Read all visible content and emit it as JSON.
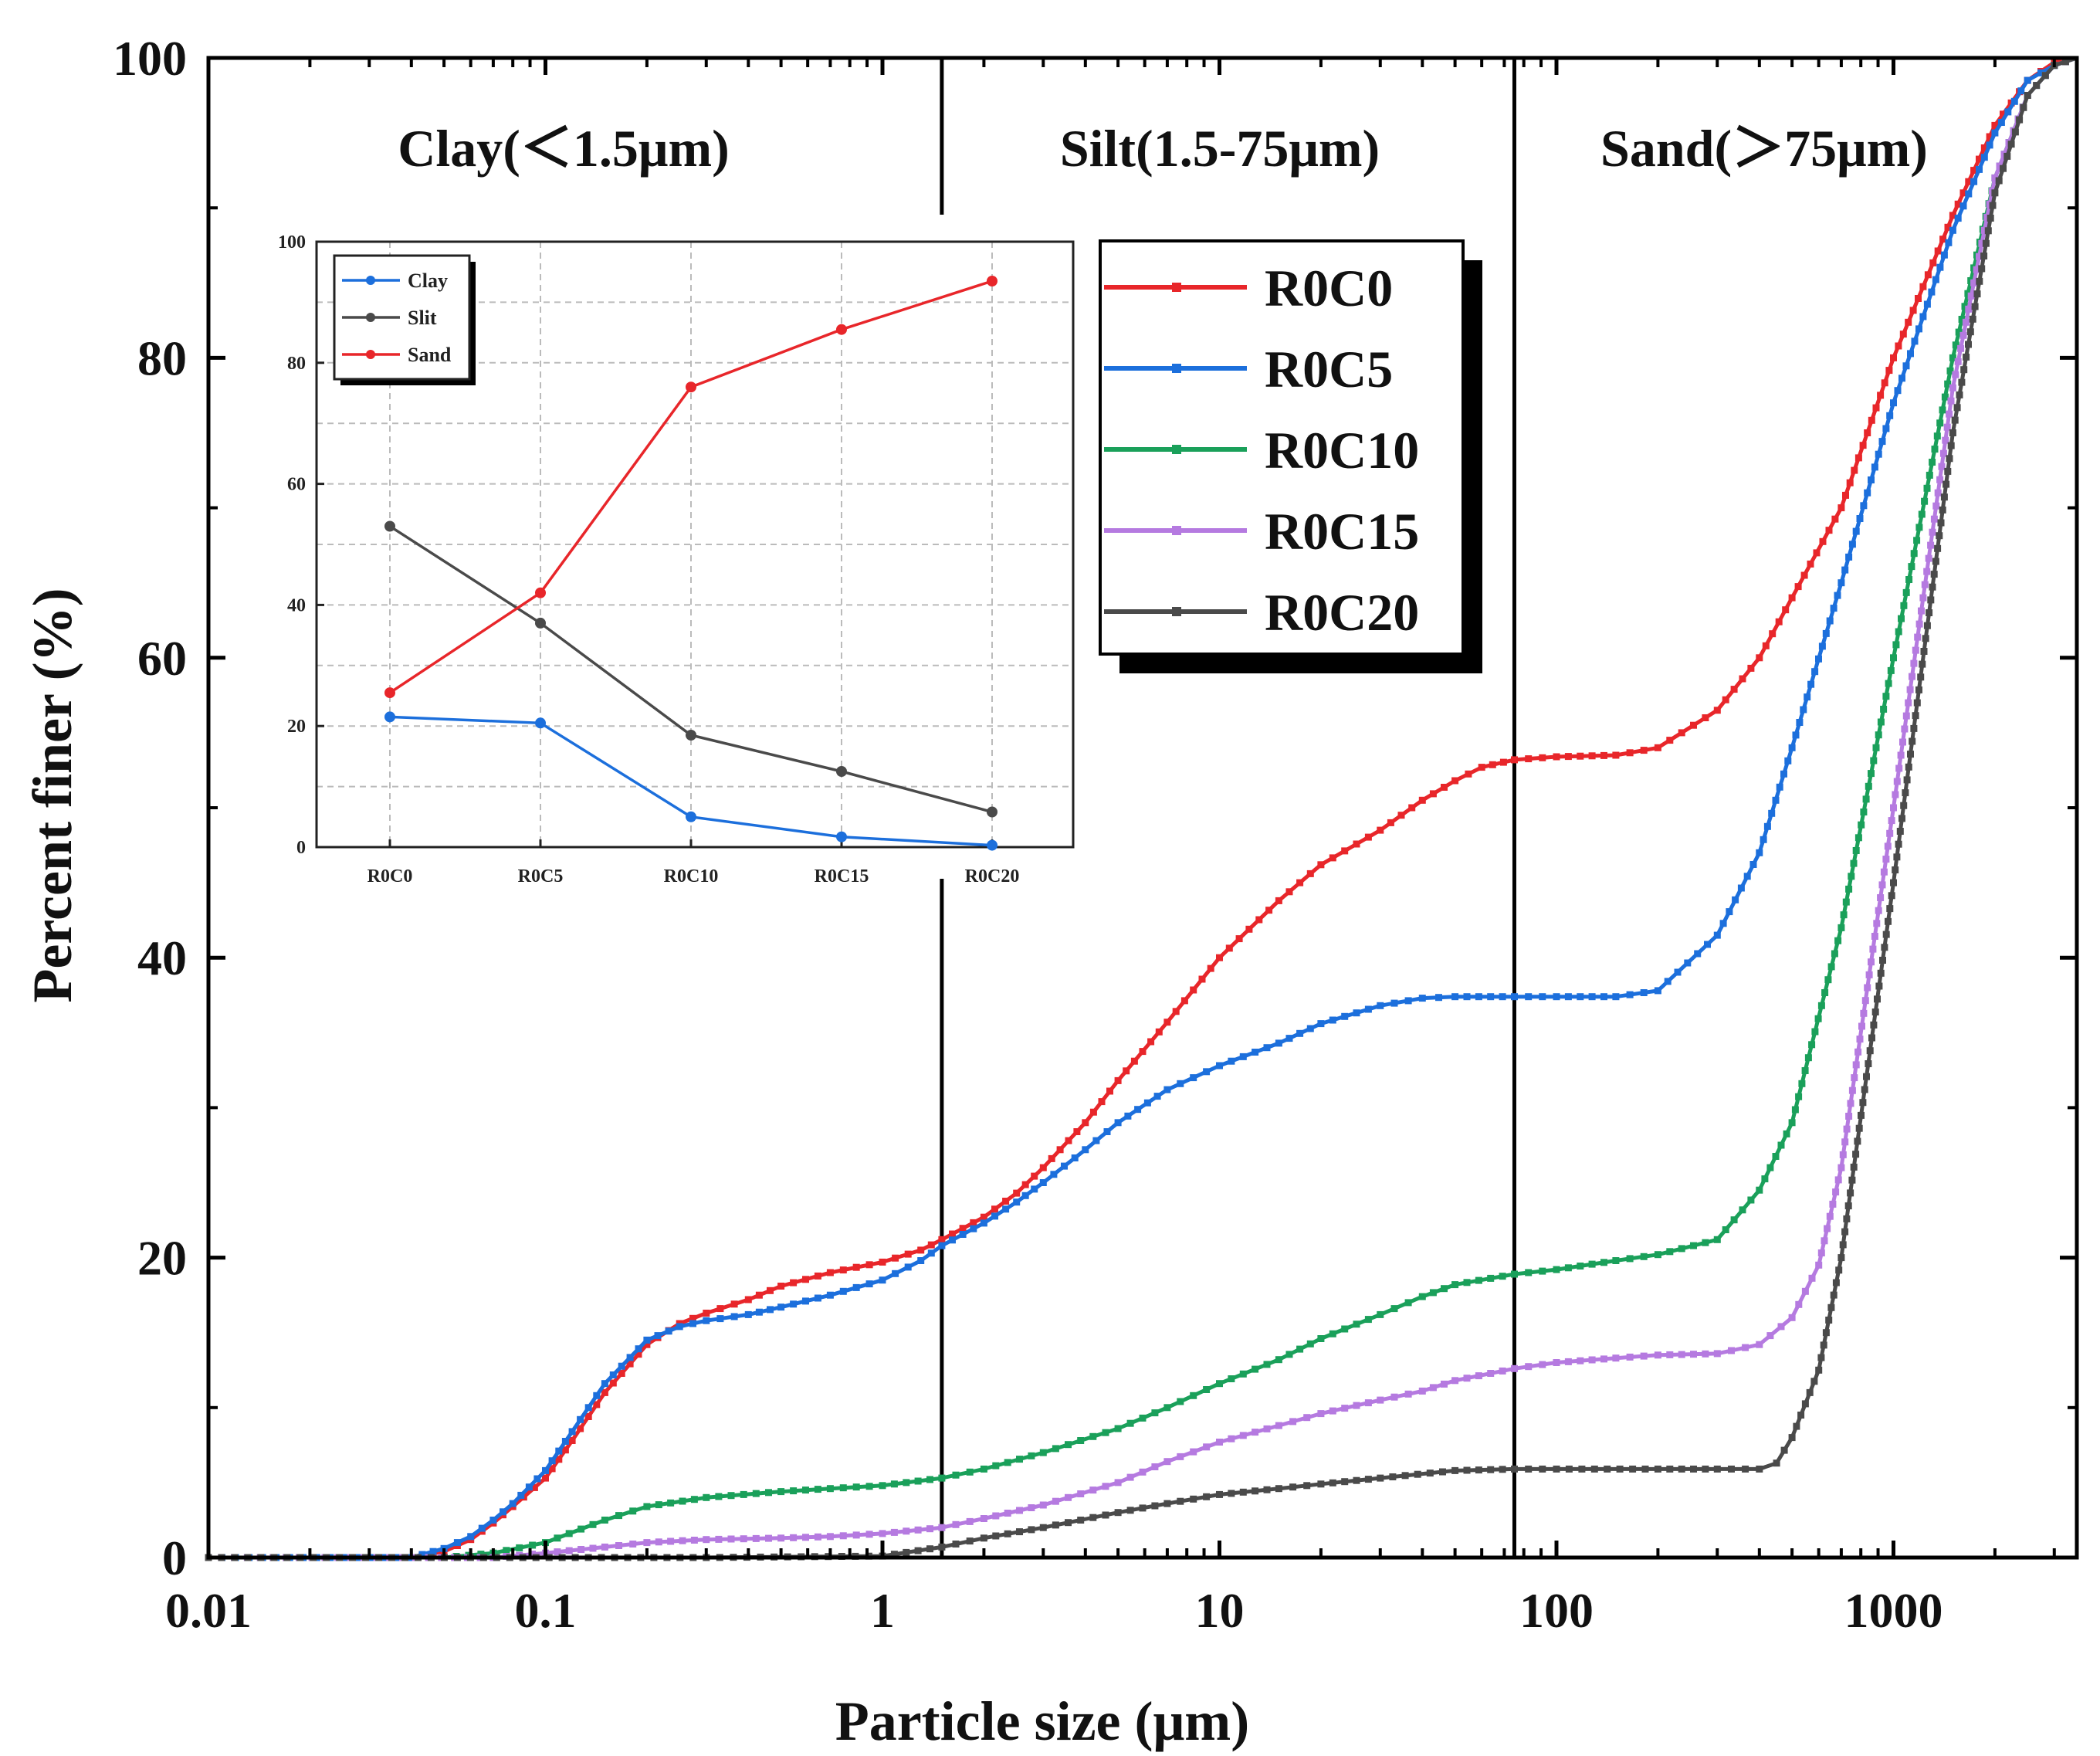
{
  "chart_data": [
    {
      "type": "line",
      "title": "",
      "xlabel": "Particle size (μm)",
      "ylabel": "Percent finer (%)",
      "xscale": "log",
      "xlim": [
        0.01,
        3500
      ],
      "ylim": [
        0,
        100
      ],
      "xtick_labels": [
        "0.01",
        "0.1",
        "1",
        "10",
        "100",
        "1000"
      ],
      "xtick_values": [
        0.01,
        0.1,
        1,
        10,
        100,
        1000
      ],
      "ytick_labels": [
        "0",
        "20",
        "40",
        "60",
        "80",
        "100"
      ],
      "ytick_values": [
        0,
        20,
        40,
        60,
        80,
        100
      ],
      "legend_position": "upper-right-center",
      "regions": [
        {
          "label": "Clay(＜1.5μm)",
          "boundary": 1.5
        },
        {
          "label": "Silt(1.5-75μm)",
          "boundary": 75
        },
        {
          "label": "Sand(＞75μm)"
        }
      ],
      "series": [
        {
          "name": "R0C0",
          "color": "#e8262a",
          "points": [
            [
              0.01,
              0
            ],
            [
              0.04,
              0
            ],
            [
              0.05,
              0.4
            ],
            [
              0.06,
              1.2
            ],
            [
              0.07,
              2.3
            ],
            [
              0.08,
              3.4
            ],
            [
              0.1,
              5.3
            ],
            [
              0.12,
              7.8
            ],
            [
              0.15,
              11
            ],
            [
              0.2,
              14.2
            ],
            [
              0.25,
              15.6
            ],
            [
              0.3,
              16.3
            ],
            [
              0.4,
              17.2
            ],
            [
              0.5,
              18.1
            ],
            [
              0.7,
              19
            ],
            [
              1,
              19.7
            ],
            [
              1.3,
              20.5
            ],
            [
              1.5,
              21.2
            ],
            [
              2,
              22.7
            ],
            [
              2.5,
              24.3
            ],
            [
              3,
              26
            ],
            [
              4,
              29
            ],
            [
              5,
              31.8
            ],
            [
              7,
              35.7
            ],
            [
              10,
              40
            ],
            [
              15,
              43.8
            ],
            [
              20,
              46.2
            ],
            [
              30,
              48.5
            ],
            [
              40,
              50.5
            ],
            [
              50,
              51.8
            ],
            [
              60,
              52.7
            ],
            [
              75,
              53.2
            ],
            [
              100,
              53.4
            ],
            [
              150,
              53.5
            ],
            [
              200,
              54
            ],
            [
              300,
              56.5
            ],
            [
              400,
              60
            ],
            [
              500,
              64
            ],
            [
              700,
              70
            ],
            [
              1000,
              80
            ],
            [
              1500,
              89.5
            ],
            [
              2000,
              95.5
            ],
            [
              2500,
              98.5
            ],
            [
              3000,
              99.7
            ],
            [
              3500,
              100
            ]
          ]
        },
        {
          "name": "R0C5",
          "color": "#1c6fdc",
          "points": [
            [
              0.01,
              0
            ],
            [
              0.04,
              0
            ],
            [
              0.05,
              0.6
            ],
            [
              0.06,
              1.4
            ],
            [
              0.07,
              2.5
            ],
            [
              0.08,
              3.6
            ],
            [
              0.1,
              5.8
            ],
            [
              0.12,
              8.4
            ],
            [
              0.15,
              11.6
            ],
            [
              0.2,
              14.5
            ],
            [
              0.25,
              15.4
            ],
            [
              0.3,
              15.8
            ],
            [
              0.4,
              16.2
            ],
            [
              0.5,
              16.7
            ],
            [
              0.7,
              17.5
            ],
            [
              1,
              18.5
            ],
            [
              1.3,
              19.8
            ],
            [
              1.5,
              20.8
            ],
            [
              2,
              22.3
            ],
            [
              2.5,
              23.7
            ],
            [
              3,
              25
            ],
            [
              4,
              27.2
            ],
            [
              5,
              29
            ],
            [
              7,
              31.2
            ],
            [
              10,
              32.8
            ],
            [
              15,
              34.3
            ],
            [
              20,
              35.6
            ],
            [
              30,
              36.8
            ],
            [
              40,
              37.3
            ],
            [
              50,
              37.4
            ],
            [
              75,
              37.4
            ],
            [
              100,
              37.4
            ],
            [
              150,
              37.4
            ],
            [
              200,
              37.8
            ],
            [
              300,
              41.5
            ],
            [
              400,
              47
            ],
            [
              500,
              54
            ],
            [
              700,
              65
            ],
            [
              1000,
              77
            ],
            [
              1500,
              88.5
            ],
            [
              2000,
              95
            ],
            [
              2500,
              98.5
            ],
            [
              3000,
              99.5
            ],
            [
              3500,
              100
            ]
          ]
        },
        {
          "name": "R0C10",
          "color": "#1aa05a",
          "points": [
            [
              0.01,
              0
            ],
            [
              0.05,
              0
            ],
            [
              0.07,
              0.3
            ],
            [
              0.1,
              1
            ],
            [
              0.15,
              2.5
            ],
            [
              0.2,
              3.4
            ],
            [
              0.3,
              4
            ],
            [
              0.5,
              4.4
            ],
            [
              0.7,
              4.6
            ],
            [
              1,
              4.8
            ],
            [
              1.5,
              5.3
            ],
            [
              2,
              5.9
            ],
            [
              3,
              7
            ],
            [
              5,
              8.6
            ],
            [
              7,
              10
            ],
            [
              10,
              11.6
            ],
            [
              15,
              13.2
            ],
            [
              20,
              14.6
            ],
            [
              30,
              16.2
            ],
            [
              40,
              17.4
            ],
            [
              50,
              18.2
            ],
            [
              75,
              18.9
            ],
            [
              100,
              19.2
            ],
            [
              150,
              19.8
            ],
            [
              200,
              20.2
            ],
            [
              300,
              21.2
            ],
            [
              400,
              24.5
            ],
            [
              500,
              29
            ],
            [
              700,
              42
            ],
            [
              1000,
              60
            ],
            [
              1500,
              80
            ],
            [
              2000,
              92
            ],
            [
              2500,
              97.5
            ],
            [
              3000,
              99.5
            ],
            [
              3500,
              100
            ]
          ]
        },
        {
          "name": "R0C15",
          "color": "#b57ae0",
          "points": [
            [
              0.01,
              0
            ],
            [
              0.07,
              0
            ],
            [
              0.1,
              0.3
            ],
            [
              0.15,
              0.7
            ],
            [
              0.2,
              1
            ],
            [
              0.3,
              1.2
            ],
            [
              0.5,
              1.3
            ],
            [
              0.7,
              1.4
            ],
            [
              1,
              1.6
            ],
            [
              1.5,
              2
            ],
            [
              2,
              2.6
            ],
            [
              3,
              3.5
            ],
            [
              5,
              5
            ],
            [
              7,
              6.4
            ],
            [
              10,
              7.7
            ],
            [
              15,
              8.8
            ],
            [
              20,
              9.6
            ],
            [
              30,
              10.5
            ],
            [
              40,
              11.1
            ],
            [
              50,
              11.8
            ],
            [
              75,
              12.6
            ],
            [
              100,
              13
            ],
            [
              150,
              13.3
            ],
            [
              200,
              13.5
            ],
            [
              300,
              13.6
            ],
            [
              400,
              14.2
            ],
            [
              500,
              16
            ],
            [
              600,
              19.5
            ],
            [
              700,
              26
            ],
            [
              1000,
              50
            ],
            [
              1500,
              78
            ],
            [
              2000,
              92
            ],
            [
              2500,
              97.5
            ],
            [
              3000,
              99.5
            ],
            [
              3500,
              100
            ]
          ]
        },
        {
          "name": "R0C20",
          "color": "#4a4a4a",
          "points": [
            [
              0.01,
              0
            ],
            [
              0.3,
              0
            ],
            [
              1,
              0.1
            ],
            [
              1.5,
              0.7
            ],
            [
              2,
              1.3
            ],
            [
              3,
              2
            ],
            [
              5,
              3
            ],
            [
              7,
              3.6
            ],
            [
              10,
              4.2
            ],
            [
              15,
              4.6
            ],
            [
              20,
              4.9
            ],
            [
              30,
              5.3
            ],
            [
              50,
              5.8
            ],
            [
              75,
              5.9
            ],
            [
              100,
              5.9
            ],
            [
              200,
              5.9
            ],
            [
              300,
              5.9
            ],
            [
              400,
              5.9
            ],
            [
              450,
              6.3
            ],
            [
              500,
              8
            ],
            [
              600,
              12.5
            ],
            [
              700,
              20
            ],
            [
              1000,
              45
            ],
            [
              1500,
              75
            ],
            [
              2000,
              91
            ],
            [
              2500,
              97.5
            ],
            [
              3000,
              99.5
            ],
            [
              3500,
              100
            ]
          ]
        }
      ]
    },
    {
      "type": "line",
      "title": "",
      "xlabel": "",
      "ylabel": "",
      "categories": [
        "R0C0",
        "R0C5",
        "R0C10",
        "R0C15",
        "R0C20"
      ],
      "ylim": [
        0,
        100
      ],
      "ytick_labels": [
        "0",
        "20",
        "40",
        "60",
        "80",
        "100"
      ],
      "ytick_values": [
        0,
        20,
        40,
        60,
        80,
        100
      ],
      "legend_position": "top-left",
      "series": [
        {
          "name": "Clay",
          "color": "#1c6fdc",
          "values": [
            21.5,
            20.5,
            5,
            1.7,
            0.3
          ]
        },
        {
          "name": "Slit",
          "color": "#4a4a4a",
          "values": [
            53,
            37,
            18.5,
            12.5,
            5.8
          ]
        },
        {
          "name": "Sand",
          "color": "#e8262a",
          "values": [
            25.5,
            42,
            76,
            85.5,
            93.5
          ]
        }
      ]
    }
  ]
}
